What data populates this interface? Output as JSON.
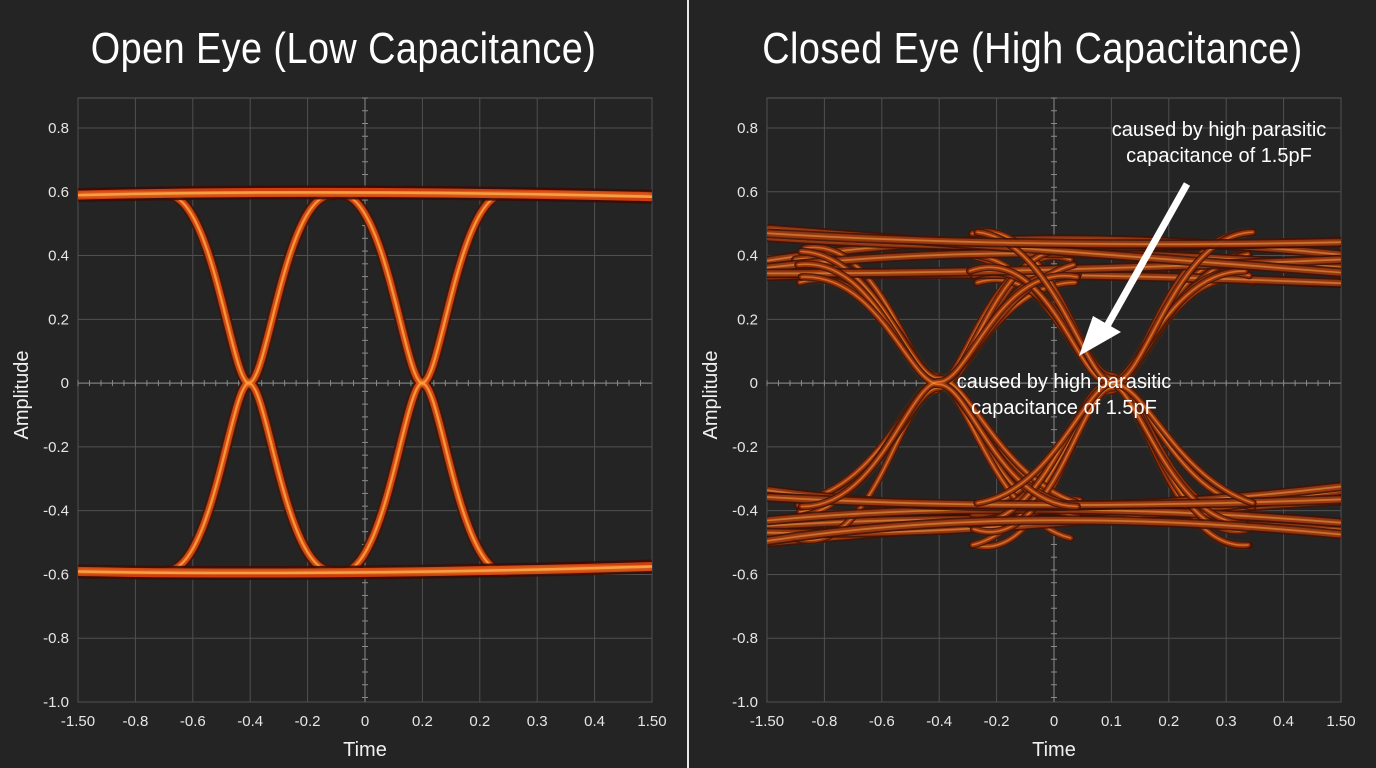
{
  "chart_data": [
    {
      "type": "line",
      "title": "Open Eye (Low Capacitance)",
      "xlabel": "Time",
      "ylabel": "Amplitude",
      "ylim": [
        -1.0,
        0.8
      ],
      "x_tick_labels": [
        "-1.50",
        "-0.8",
        "-0.6",
        "-0.4",
        "-0.2",
        "0",
        "0.2",
        "0.2",
        "0.3",
        "0.4",
        "1.50"
      ],
      "y_tick_labels": [
        "0.8",
        "0.6",
        "0.4",
        "0.2",
        "0",
        "-0.2",
        "-0.4",
        "-0.6",
        "-0.8",
        "-1.0"
      ],
      "grid": true,
      "series": [
        {
          "x": [
            -1.5,
            -1.45,
            -1.4,
            -1.3,
            -1.2,
            -1.0,
            -0.8,
            -0.6,
            -0.4,
            -0.2,
            0,
            0.2,
            0.25,
            0.3,
            0.4,
            1.5
          ],
          "y": [
            0.59,
            0.6,
            0.6,
            0.59,
            0.58,
            0.58,
            0.59,
            0.6,
            0.61,
            0.62,
            0.6,
            0.6,
            0.6,
            0.59,
            0.58,
            0.58
          ]
        },
        {
          "x": [
            -1.5,
            -1.4,
            -1.3,
            -1.2,
            -1.0,
            -0.8,
            -0.6,
            -0.4,
            -0.2,
            0,
            0.2,
            0.25,
            0.3,
            0.4,
            1.5
          ],
          "y": [
            -0.59,
            -0.6,
            -0.59,
            -0.58,
            -0.58,
            -0.59,
            -0.6,
            -0.6,
            -0.61,
            -0.6,
            -0.6,
            -0.6,
            -0.59,
            -0.58,
            -0.58
          ]
        },
        {
          "x": [
            -0.85,
            -0.75,
            -0.65,
            -0.6,
            -0.55,
            -0.45,
            -0.35,
            -0.2
          ],
          "y": [
            0.6,
            0.45,
            0.2,
            0.0,
            -0.2,
            -0.45,
            -0.55,
            -0.59
          ]
        },
        {
          "x": [
            -0.85,
            -0.75,
            -0.65,
            -0.6,
            -0.55,
            -0.45,
            -0.35,
            -0.2
          ],
          "y": [
            -0.6,
            -0.45,
            -0.2,
            0.0,
            0.2,
            0.45,
            0.55,
            0.59
          ]
        }
      ]
    },
    {
      "type": "line",
      "title": "Closed Eye (High Capacitance)",
      "xlabel": "Time",
      "ylabel": "Amplitude",
      "ylim": [
        -1.0,
        0.8
      ],
      "x_tick_labels": [
        "-1.50",
        "-0.8",
        "-0.6",
        "-0.4",
        "-0.2",
        "0",
        "0.1",
        "0.2",
        "0.3",
        "0.4",
        "1.50"
      ],
      "y_tick_labels": [
        "0.8",
        "0.6",
        "0.4",
        "0.2",
        "0",
        "-0.2",
        "-0.4",
        "-0.6",
        "-0.8",
        "-1.0"
      ],
      "grid": true,
      "annotations": [
        {
          "text": "caused by high parasitic capacitance of 1.5pF"
        },
        {
          "text": "caused by high parasitic capacitance of 1.5pF"
        }
      ],
      "series": [
        {
          "x": [
            -1.5,
            -1.0,
            -0.7,
            -0.4,
            -0.1,
            0.1,
            0.25,
            1.5
          ],
          "y": [
            0.42,
            0.38,
            0.38,
            0.4,
            0.38,
            0.36,
            0.4,
            0.42
          ]
        },
        {
          "x": [
            -1.5,
            -1.0,
            -0.7,
            -0.4,
            -0.1,
            0.1,
            0.25,
            1.5
          ],
          "y": [
            -0.42,
            -0.4,
            -0.38,
            -0.4,
            -0.42,
            -0.38,
            -0.4,
            -0.45
          ]
        },
        {
          "x": [
            -0.9,
            -0.75,
            -0.62,
            -0.5,
            -0.3
          ],
          "y": [
            0.45,
            0.25,
            0.0,
            -0.25,
            -0.42
          ]
        },
        {
          "x": [
            -0.9,
            -0.75,
            -0.62,
            -0.5,
            -0.3
          ],
          "y": [
            -0.45,
            -0.25,
            0.0,
            0.25,
            0.42
          ]
        }
      ]
    }
  ]
}
